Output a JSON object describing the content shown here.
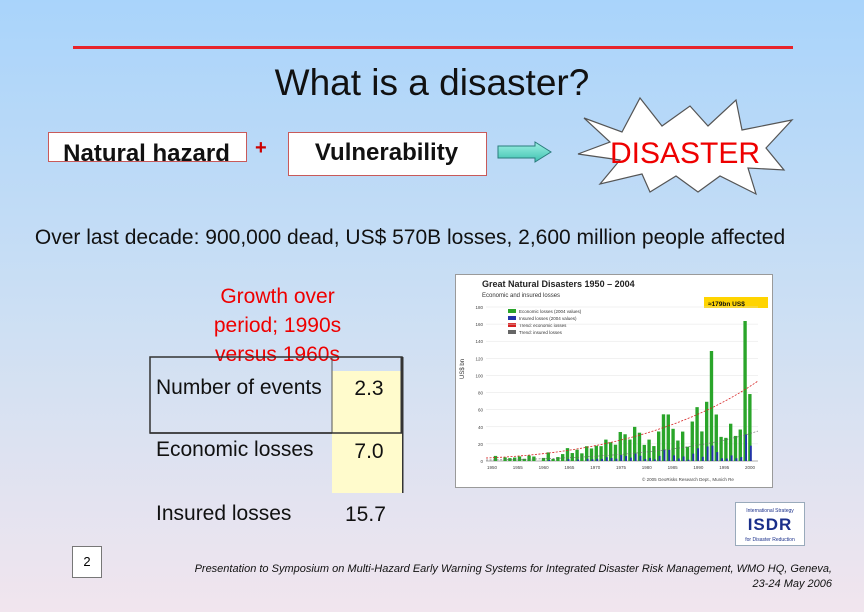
{
  "slide": {
    "title": "What is a disaster?",
    "hazard_label": "Natural hazard",
    "plus_sign": "+",
    "vulnerability_label": "Vulnerability",
    "disaster_label": "DISASTER",
    "stats_line": "Over last decade: 900,000 dead, US$ 570B losses, 2,600 million people affected",
    "growth_heading": "Growth over period; 1990s versus 1960s",
    "table": {
      "rows": [
        {
          "label": "Number of events",
          "value": "2.3"
        },
        {
          "label": "Economic losses",
          "value": "7.0"
        },
        {
          "label": "Insured losses",
          "value": "15.7"
        }
      ]
    },
    "page_number": "2",
    "footer": "Presentation to Symposium on Multi-Hazard Early Warning Systems for Integrated Disaster Risk Management, WMO HQ, Geneva, 23-24 May 2006"
  },
  "embedded_chart": {
    "title": "Great Natural Disasters 1950 – 2004",
    "subtitle": "Economic and insured losses",
    "ylabel": "US$ bn",
    "callout": "≈179bn US$",
    "legend": [
      "Economic losses (2004 values)",
      "Insured losses (2004 values)",
      "Trend: economic losses",
      "Trend: insured losses"
    ],
    "y_ticks": [
      "0",
      "20",
      "40",
      "60",
      "80",
      "100",
      "120",
      "140",
      "160",
      "180"
    ],
    "x_ticks": [
      "1950",
      "1955",
      "1960",
      "1965",
      "1970",
      "1975",
      "1980",
      "1985",
      "1990",
      "1995",
      "2000"
    ],
    "credit": "© 2005 GeoRisks Research Dept., Munich Re",
    "colors": {
      "economic": "#2aa52a",
      "insured": "#2233aa",
      "trend_econ": "#d62020",
      "trend_ins": "#666666"
    }
  },
  "logo": {
    "line1": "International Strategy",
    "letters": "ISDR",
    "line2": "for Disaster Reduction"
  }
}
